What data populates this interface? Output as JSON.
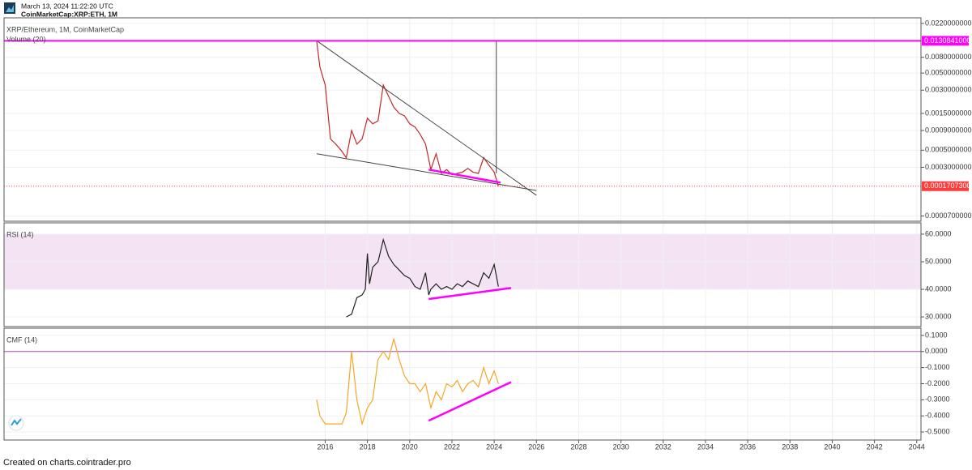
{
  "header": {
    "timestamp": "March 13, 2024 11:22:20 UTC",
    "symbol": "CoinMarketCap:XRP:ETH, 1M"
  },
  "footer": "Created on charts.cointrader.pro",
  "chart_data": [
    {
      "type": "line",
      "title": "XRP/Ethereum, 1M, CoinMarketCap",
      "subtitle": "Volume (20)",
      "yscale": "log",
      "color": "#c62828",
      "xlim": [
        2000.8,
        2044.2
      ],
      "ylim": [
        6e-05,
        0.026
      ],
      "yticks": [
        {
          "value": 0.022,
          "label": "0.0220000000"
        },
        {
          "value": 0.008,
          "label": "0.0080000000"
        },
        {
          "value": 0.005,
          "label": "0.0050000000"
        },
        {
          "value": 0.003,
          "label": "0.0030000000"
        },
        {
          "value": 0.0015,
          "label": "0.0015000000"
        },
        {
          "value": 0.0009,
          "label": "0.0009000000"
        },
        {
          "value": 0.0005,
          "label": "0.0005000000"
        },
        {
          "value": 0.0003,
          "label": "0.0003000000"
        },
        {
          "value": 7e-05,
          "label": "0.0000700000"
        }
      ],
      "x": [
        2015.6,
        2015.75,
        2016.0,
        2016.25,
        2016.5,
        2016.75,
        2017.0,
        2017.25,
        2017.5,
        2017.75,
        2018.0,
        2018.25,
        2018.5,
        2018.75,
        2019.0,
        2019.25,
        2019.5,
        2019.75,
        2020.0,
        2020.25,
        2020.5,
        2020.75,
        2021.0,
        2021.25,
        2021.5,
        2021.75,
        2022.0,
        2022.25,
        2022.5,
        2022.75,
        2023.0,
        2023.25,
        2023.5,
        2023.75,
        2024.0,
        2024.2
      ],
      "values": [
        0.013,
        0.006,
        0.0035,
        0.0007,
        0.0006,
        0.0005,
        0.0004,
        0.0009,
        0.0006,
        0.0007,
        0.0013,
        0.0011,
        0.0012,
        0.0035,
        0.0025,
        0.0018,
        0.0015,
        0.0014,
        0.0011,
        0.001,
        0.0008,
        0.0006,
        0.00028,
        0.00045,
        0.00025,
        0.00028,
        0.00024,
        0.00025,
        0.00026,
        0.00029,
        0.00026,
        0.00025,
        0.0004,
        0.00032,
        0.00026,
        0.00017073
      ],
      "hlines": [
        {
          "value": 0.0130841,
          "label": "0.0130841000",
          "color": "#ff00ff",
          "style": "solid"
        },
        {
          "value": 0.00017073,
          "label": "0.0001707300",
          "color": "#ff3b3b",
          "style": "dotted"
        }
      ],
      "trendlines": [
        {
          "color": "#444444",
          "x": [
            2015.6,
            2026.0
          ],
          "y": [
            0.0131,
            0.00013
          ]
        },
        {
          "color": "#444444",
          "x": [
            2015.6,
            2026.0
          ],
          "y": [
            0.00045,
            0.00015
          ]
        },
        {
          "color": "#444444",
          "x": [
            2024.1,
            2024.1
          ],
          "y": [
            0.00025,
            0.0131
          ]
        },
        {
          "color": "#ff00ff",
          "x": [
            2020.9,
            2024.3
          ],
          "y": [
            0.00028,
            0.00019
          ]
        }
      ]
    },
    {
      "type": "line",
      "title": "RSI (14)",
      "color": "#222222",
      "xlim": [
        2000.8,
        2044.2
      ],
      "ylim": [
        26.5,
        64.1
      ],
      "yticks": [
        {
          "value": 60,
          "label": "60.0000"
        },
        {
          "value": 50,
          "label": "50.0000"
        },
        {
          "value": 40,
          "label": "40.0000"
        },
        {
          "value": 30,
          "label": "30.0000"
        }
      ],
      "band": [
        40,
        60
      ],
      "band_color": "#f3e3f3",
      "x": [
        2017.0,
        2017.25,
        2017.5,
        2017.75,
        2017.9,
        2018.0,
        2018.1,
        2018.25,
        2018.5,
        2018.75,
        2019.0,
        2019.25,
        2019.5,
        2019.75,
        2020.0,
        2020.25,
        2020.5,
        2020.75,
        2020.9,
        2021.0,
        2021.25,
        2021.5,
        2021.75,
        2022.0,
        2022.25,
        2022.5,
        2022.75,
        2023.0,
        2023.25,
        2023.5,
        2023.75,
        2024.0,
        2024.2
      ],
      "values": [
        30,
        31,
        37,
        38,
        40,
        53,
        42,
        48,
        50,
        58,
        52,
        49,
        47,
        45,
        44,
        41,
        40,
        46,
        38,
        40,
        42,
        40,
        41,
        40,
        42,
        41,
        43,
        42,
        41,
        46,
        44,
        49,
        41
      ],
      "trendlines": [
        {
          "color": "#ff00ff",
          "x": [
            2020.9,
            2024.8
          ],
          "y": [
            36.5,
            40.5
          ]
        }
      ]
    },
    {
      "type": "line",
      "title": "CMF (14)",
      "color": "#f5a623",
      "xlim": [
        2000.8,
        2044.2
      ],
      "ylim": [
        -0.55,
        0.145
      ],
      "xticks": [
        2016,
        2018,
        2020,
        2022,
        2024,
        2026,
        2028,
        2030,
        2032,
        2034,
        2036,
        2038,
        2040,
        2042,
        2044
      ],
      "yticks": [
        {
          "value": 0.1,
          "label": "0.1000"
        },
        {
          "value": 0,
          "label": "0.0000"
        },
        {
          "value": -0.1,
          "label": "-0.1000"
        },
        {
          "value": -0.2,
          "label": "-0.2000"
        },
        {
          "value": -0.3,
          "label": "-0.3000"
        },
        {
          "value": -0.4,
          "label": "-0.4000"
        },
        {
          "value": -0.5,
          "label": "-0.5000"
        }
      ],
      "zero_line_color": "#b04bb0",
      "x": [
        2015.6,
        2015.75,
        2016.0,
        2016.5,
        2016.8,
        2017.0,
        2017.25,
        2017.5,
        2017.75,
        2018.0,
        2018.25,
        2018.5,
        2018.75,
        2019.0,
        2019.25,
        2019.5,
        2019.75,
        2020.0,
        2020.25,
        2020.5,
        2020.75,
        2021.0,
        2021.25,
        2021.5,
        2021.75,
        2022.0,
        2022.25,
        2022.5,
        2022.75,
        2023.0,
        2023.25,
        2023.5,
        2023.75,
        2024.0,
        2024.2
      ],
      "values": [
        -0.3,
        -0.4,
        -0.45,
        -0.45,
        -0.45,
        -0.38,
        0.0,
        -0.3,
        -0.45,
        -0.35,
        -0.3,
        -0.05,
        0.0,
        -0.05,
        0.08,
        -0.05,
        -0.15,
        -0.2,
        -0.2,
        -0.25,
        -0.2,
        -0.35,
        -0.25,
        -0.3,
        -0.2,
        -0.22,
        -0.18,
        -0.25,
        -0.2,
        -0.18,
        -0.22,
        -0.1,
        -0.2,
        -0.12,
        -0.2
      ],
      "trendlines": [
        {
          "color": "#ff00ff",
          "x": [
            2020.9,
            2024.8
          ],
          "y": [
            -0.43,
            -0.19
          ]
        }
      ]
    }
  ]
}
